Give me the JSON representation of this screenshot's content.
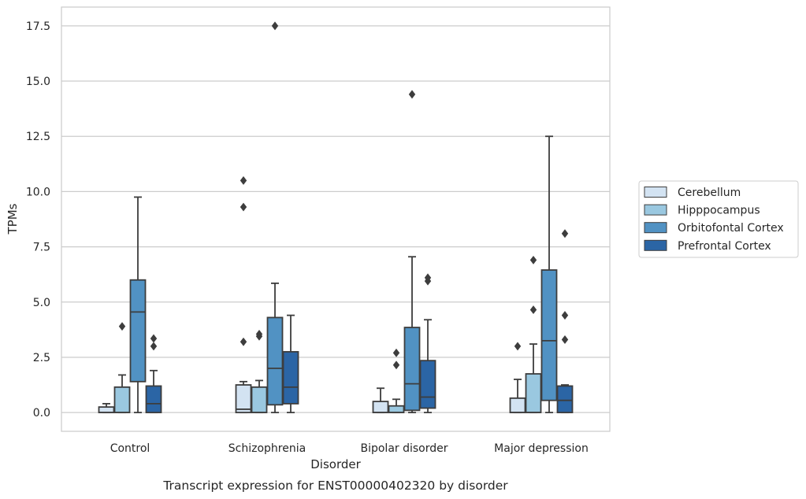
{
  "chart_data": {
    "type": "box",
    "title": "",
    "caption": "Transcript expression for ENST00000402320 by disorder",
    "xlabel": "Disorder",
    "ylabel": "TPMs",
    "ylim": [
      -0.85,
      18.35
    ],
    "yticks": [
      "0.0",
      "2.5",
      "5.0",
      "7.5",
      "10.0",
      "12.5",
      "15.0",
      "17.5"
    ],
    "ytick_values": [
      0,
      2.5,
      5,
      7.5,
      10,
      12.5,
      15,
      17.5
    ],
    "grid": "horizontal",
    "legend_position": "right",
    "categories": [
      "Control",
      "Schizophrenia",
      "Bipolar disorder",
      "Major depression"
    ],
    "series": [
      {
        "name": "Cerebellum",
        "color": "#d3e3f2",
        "boxes": [
          {
            "whislo": 0.0,
            "q1": 0.0,
            "med": 0.0,
            "q3": 0.25,
            "whishi": 0.4,
            "fliers": []
          },
          {
            "whislo": 0.0,
            "q1": 0.0,
            "med": 0.15,
            "q3": 1.25,
            "whishi": 1.4,
            "fliers": [
              3.2,
              9.3,
              10.5
            ]
          },
          {
            "whislo": 0.0,
            "q1": 0.0,
            "med": 0.0,
            "q3": 0.5,
            "whishi": 1.1,
            "fliers": []
          },
          {
            "whislo": 0.0,
            "q1": 0.0,
            "med": 0.0,
            "q3": 0.65,
            "whishi": 1.5,
            "fliers": [
              3.0
            ]
          }
        ]
      },
      {
        "name": "Hipppocampus",
        "color": "#9ac8e0",
        "boxes": [
          {
            "whislo": 0.0,
            "q1": 0.0,
            "med": 0.0,
            "q3": 1.15,
            "whishi": 1.7,
            "fliers": [
              3.9
            ]
          },
          {
            "whislo": 0.0,
            "q1": 0.0,
            "med": 0.0,
            "q3": 1.15,
            "whishi": 1.45,
            "fliers": [
              3.45,
              3.55
            ]
          },
          {
            "whislo": 0.0,
            "q1": 0.0,
            "med": 0.0,
            "q3": 0.3,
            "whishi": 0.6,
            "fliers": [
              2.15,
              2.7
            ]
          },
          {
            "whislo": 0.0,
            "q1": 0.0,
            "med": 0.0,
            "q3": 1.75,
            "whishi": 3.1,
            "fliers": [
              4.65,
              6.9
            ]
          }
        ]
      },
      {
        "name": "Orbitofontal Cortex",
        "color": "#5192c3",
        "boxes": [
          {
            "whislo": 0.0,
            "q1": 1.4,
            "med": 4.55,
            "q3": 6.0,
            "whishi": 9.75,
            "fliers": []
          },
          {
            "whislo": 0.0,
            "q1": 0.35,
            "med": 2.0,
            "q3": 4.3,
            "whishi": 5.85,
            "fliers": [
              17.5
            ]
          },
          {
            "whislo": 0.0,
            "q1": 0.1,
            "med": 1.3,
            "q3": 3.85,
            "whishi": 7.05,
            "fliers": [
              14.4
            ]
          },
          {
            "whislo": 0.0,
            "q1": 0.55,
            "med": 3.25,
            "q3": 6.45,
            "whishi": 12.5,
            "fliers": []
          }
        ]
      },
      {
        "name": "Prefrontal Cortex",
        "color": "#2b65a5",
        "boxes": [
          {
            "whislo": 0.0,
            "q1": 0.0,
            "med": 0.4,
            "q3": 1.2,
            "whishi": 1.9,
            "fliers": [
              3.0,
              3.35
            ]
          },
          {
            "whislo": 0.0,
            "q1": 0.4,
            "med": 1.15,
            "q3": 2.75,
            "whishi": 4.4,
            "fliers": []
          },
          {
            "whislo": 0.0,
            "q1": 0.2,
            "med": 0.7,
            "q3": 2.35,
            "whishi": 4.2,
            "fliers": [
              5.95,
              6.1
            ]
          },
          {
            "whislo": 0.0,
            "q1": 0.0,
            "med": 0.55,
            "q3": 1.2,
            "whishi": 1.25,
            "fliers": [
              3.3,
              4.4,
              8.1
            ]
          }
        ]
      }
    ]
  }
}
